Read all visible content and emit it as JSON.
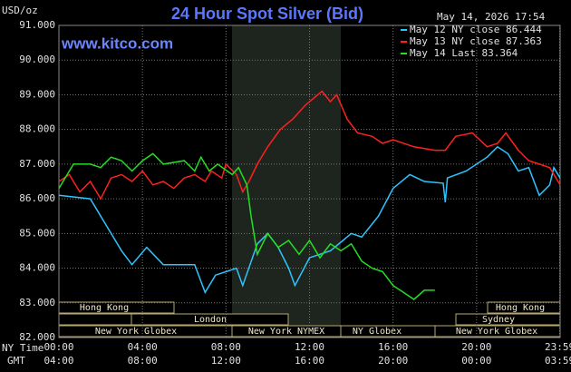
{
  "chart_data": {
    "type": "line",
    "title": "24 Hour Spot Silver (Bid)",
    "site": "www.kitco.com",
    "timestamp": "May 14, 2026 17:54",
    "y_label": "USD/oz",
    "x_label": "NY Time",
    "x2_label": "GMT",
    "xlim": [
      0,
      24
    ],
    "xticks": [
      {
        "value": 0,
        "label": "00:00"
      },
      {
        "value": 4,
        "label": "04:00"
      },
      {
        "value": 8,
        "label": "08:00"
      },
      {
        "value": 12,
        "label": "12:00"
      },
      {
        "value": 16,
        "label": "16:00"
      },
      {
        "value": 20,
        "label": "20:00"
      },
      {
        "value": 23.98,
        "label": "23:59"
      }
    ],
    "x2ticks": [
      "04:00",
      "08:00",
      "12:00",
      "16:00",
      "20:00",
      "00:00",
      "03:59"
    ],
    "ylim": [
      82,
      91
    ],
    "yticks": [
      {
        "value": 82,
        "label": "82.000"
      },
      {
        "value": 83,
        "label": "83.000"
      },
      {
        "value": 84,
        "label": "84.000"
      },
      {
        "value": 85,
        "label": "85.000"
      },
      {
        "value": 86,
        "label": "86.000"
      },
      {
        "value": 87,
        "label": "87.000"
      },
      {
        "value": 88,
        "label": "88.000"
      },
      {
        "value": 89,
        "label": "89.000"
      },
      {
        "value": 90,
        "label": "90.000"
      },
      {
        "value": 91,
        "label": "91.000"
      }
    ],
    "grid": true,
    "sessions": [
      "Hong Kong",
      "London",
      "New York Globex",
      "New York NYMEX",
      "NY Globex",
      "Hong Kong",
      "Sydney",
      "New York Globex"
    ],
    "series": [
      {
        "name": "May 12 NY close 86.444",
        "color": "#2ec4ff",
        "x": [
          0,
          1.5,
          2.5,
          3,
          3.5,
          4.2,
          5,
          6.5,
          7,
          7.5,
          8.5,
          8.8,
          9.5,
          10,
          10.5,
          11,
          11.3,
          12,
          13,
          13.6,
          14,
          14.5,
          15.3,
          16,
          16.8,
          17.5,
          18.4,
          18.5,
          18.6,
          19.5,
          20.5,
          21,
          21.5,
          22,
          22.5,
          23,
          23.5,
          23.7,
          24
        ],
        "values": [
          86.1,
          86.0,
          85.0,
          84.5,
          84.1,
          84.6,
          84.1,
          84.1,
          83.3,
          83.8,
          84.0,
          83.5,
          84.7,
          85.0,
          84.6,
          84.0,
          83.5,
          84.3,
          84.5,
          84.8,
          85.0,
          84.9,
          85.5,
          86.3,
          86.7,
          86.5,
          86.45,
          85.9,
          86.6,
          86.8,
          87.2,
          87.5,
          87.3,
          86.8,
          86.9,
          86.1,
          86.4,
          86.9,
          86.6
        ]
      },
      {
        "name": "May 13 NY close 87.363",
        "color": "#ff2020",
        "x": [
          0,
          0.5,
          1,
          1.5,
          2,
          2.5,
          3,
          3.5,
          4,
          4.5,
          5,
          5.5,
          6,
          6.5,
          7,
          7.3,
          7.8,
          8,
          8.5,
          8.8,
          9.1,
          9.5,
          10,
          10.6,
          11.2,
          11.8,
          12.6,
          13,
          13.3,
          13.8,
          14.3,
          15,
          15.5,
          16,
          17,
          18,
          18.5,
          19,
          19.8,
          20.5,
          21,
          21.4,
          22,
          22.5,
          23,
          23.5,
          24
        ],
        "values": [
          86.5,
          86.7,
          86.2,
          86.5,
          86.0,
          86.6,
          86.7,
          86.5,
          86.8,
          86.4,
          86.5,
          86.3,
          86.6,
          86.7,
          86.5,
          86.8,
          86.6,
          87.0,
          86.7,
          86.2,
          86.5,
          87.0,
          87.5,
          88.0,
          88.3,
          88.7,
          89.1,
          88.8,
          89.0,
          88.3,
          87.9,
          87.8,
          87.6,
          87.7,
          87.5,
          87.4,
          87.4,
          87.8,
          87.9,
          87.5,
          87.6,
          87.9,
          87.4,
          87.1,
          87.0,
          86.9,
          86.4
        ]
      },
      {
        "name": "May 14 Last 83.364",
        "color": "#22e022",
        "x": [
          0,
          0.7,
          1.5,
          2,
          2.5,
          3,
          3.5,
          4,
          4.5,
          5,
          6,
          6.5,
          6.8,
          7.2,
          7.6,
          8.3,
          8.6,
          9,
          9.2,
          9.5,
          10,
          10.5,
          11,
          11.5,
          12,
          12.5,
          13,
          13.5,
          14,
          14.5,
          15,
          15.5,
          16,
          16.5,
          17,
          17.5,
          18
        ],
        "values": [
          86.3,
          87.0,
          87.0,
          86.9,
          87.2,
          87.1,
          86.8,
          87.1,
          87.3,
          87.0,
          87.1,
          86.8,
          87.2,
          86.8,
          87.0,
          86.7,
          86.9,
          86.4,
          85.5,
          84.4,
          85.0,
          84.6,
          84.8,
          84.4,
          84.8,
          84.3,
          84.7,
          84.5,
          84.7,
          84.2,
          84.0,
          83.9,
          83.5,
          83.3,
          83.1,
          83.364,
          83.364
        ]
      }
    ]
  }
}
